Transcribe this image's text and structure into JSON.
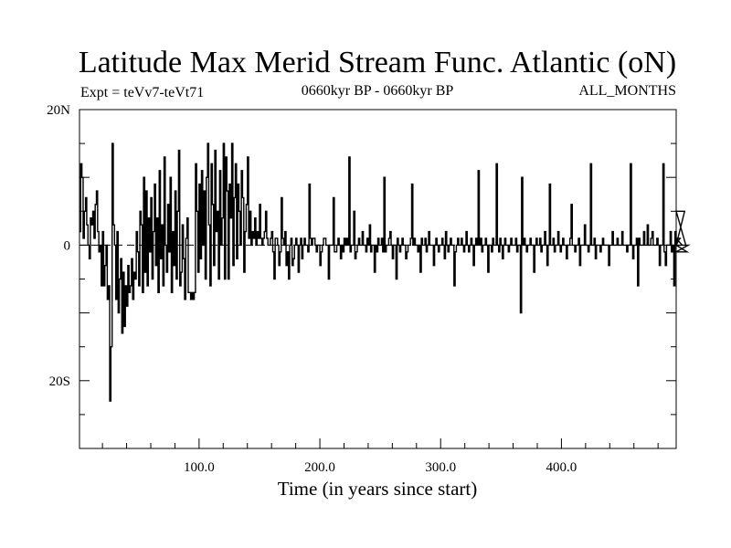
{
  "header": {
    "title": "Latitude Max Merid Stream Func. Atlantic (oN)",
    "experiment": "Expt = teVv7-teVt71",
    "period": "0660kyr BP - 0660kyr BP",
    "months": "ALL_MONTHS"
  },
  "chart_data": {
    "type": "line",
    "title": "Latitude Max Merid Stream Func. Atlantic (oN)",
    "xlabel": "Time (in years since start)",
    "ylabel": "",
    "xlim": [
      1,
      495
    ],
    "ylim": [
      -30,
      20
    ],
    "x_ticks": [
      {
        "value": 100,
        "label": "100.0"
      },
      {
        "value": 200,
        "label": "200.0"
      },
      {
        "value": 300,
        "label": "300.0"
      },
      {
        "value": 400,
        "label": "400.0"
      }
    ],
    "y_ticks": [
      {
        "value": 20,
        "label": "20N"
      },
      {
        "value": 0,
        "label": "0"
      },
      {
        "value": -20,
        "label": "20S"
      }
    ],
    "zero_line": "dashed",
    "grid": false,
    "line_color": "#000000",
    "series": [
      {
        "x_start": 1,
        "x_step": 1,
        "values": [
          2,
          12,
          10,
          1,
          5,
          7,
          3,
          0,
          -2,
          4,
          3,
          5,
          1,
          6,
          8,
          2,
          -1,
          0,
          -6,
          2,
          -6,
          -3,
          0,
          -8,
          -6,
          -23,
          -15,
          15,
          3,
          0,
          -8,
          2,
          -10,
          -5,
          -2,
          -13,
          -4,
          -12,
          -6,
          -9,
          -3,
          -7,
          -6,
          -2,
          -8,
          -4,
          -5,
          2,
          -1,
          -6,
          5,
          3,
          -7,
          10,
          -4,
          8,
          -6,
          4,
          -1,
          7,
          -5,
          2,
          9,
          -3,
          4,
          -7,
          11,
          -2,
          3,
          -6,
          13,
          0,
          -4,
          6,
          -1,
          10,
          -7,
          2,
          -3,
          8,
          -5,
          5,
          14,
          -6,
          -4,
          3,
          -2,
          -8,
          1,
          4,
          -7,
          -7,
          -8,
          -7,
          -8,
          -7,
          12,
          5,
          -4,
          9,
          -2,
          11,
          0,
          8,
          -5,
          10,
          15,
          3,
          -6,
          12,
          6,
          -3,
          14,
          2,
          5,
          -5,
          11,
          0,
          4,
          15,
          -5,
          13,
          8,
          -5,
          9,
          4,
          15,
          -3,
          7,
          12,
          -2,
          9,
          5,
          0,
          11,
          7,
          -4,
          2,
          6,
          13,
          1,
          5,
          0,
          2,
          1,
          4,
          0,
          2,
          1,
          6,
          1,
          0,
          1,
          2,
          5,
          1,
          0,
          0,
          1,
          2,
          -1,
          -5,
          1,
          1,
          0,
          -3,
          -1,
          7,
          1,
          0,
          2,
          -3,
          -1,
          -5,
          0,
          1,
          -3,
          -2,
          0,
          1,
          0,
          -4,
          0,
          1,
          -2,
          0,
          1,
          0,
          0,
          -1,
          9,
          1,
          0,
          1,
          1,
          0,
          -1,
          0,
          0,
          -3,
          -1,
          0,
          1,
          1,
          0,
          0,
          -5,
          0,
          0,
          0,
          7,
          -1,
          -1,
          0,
          1,
          0,
          -2,
          0,
          -1,
          1,
          0,
          1,
          0,
          13,
          -1,
          0,
          0,
          5,
          -2,
          -1,
          0,
          1,
          0,
          0,
          2,
          0,
          0,
          -1,
          1,
          0,
          3,
          -1,
          0,
          0,
          -4,
          0,
          -1,
          1,
          0,
          0,
          1,
          -1,
          10,
          -1,
          0,
          0,
          1,
          2,
          0,
          -2,
          0,
          0,
          -5,
          1,
          0,
          -1,
          0,
          1,
          0,
          0,
          -2,
          -1,
          0,
          0,
          1,
          9,
          0,
          1,
          0,
          0,
          -1,
          0,
          -4,
          1,
          0,
          0,
          1,
          -1,
          0,
          2,
          0,
          0,
          0,
          -3,
          0,
          1,
          0,
          -1,
          0,
          0,
          1,
          0,
          -2,
          2,
          0,
          -1,
          0,
          1,
          0,
          0,
          -6,
          -1,
          0,
          1,
          0,
          0,
          1,
          0,
          -1,
          0,
          2,
          0,
          -1,
          0,
          1,
          0,
          -3,
          0,
          1,
          0,
          11,
          0,
          1,
          -1,
          0,
          0,
          1,
          0,
          -4,
          0,
          0,
          -1,
          1,
          0,
          0,
          12,
          0,
          -1,
          1,
          0,
          -2,
          0,
          1,
          0,
          0,
          -1,
          0,
          1,
          0,
          0,
          0,
          1,
          -1,
          0,
          0,
          -10,
          10,
          0,
          1,
          0,
          -1,
          0,
          0,
          1,
          0,
          0,
          -4,
          0,
          1,
          0,
          0,
          1,
          -1,
          0,
          0,
          2,
          0,
          -3,
          0,
          9,
          0,
          0,
          1,
          -1,
          0,
          0,
          2,
          0,
          -1,
          0,
          1,
          0,
          0,
          -2,
          0,
          0,
          1,
          6,
          0,
          0,
          -1,
          0,
          0,
          1,
          -3,
          0,
          0,
          0,
          3,
          0,
          0,
          -1,
          0,
          12,
          0,
          0,
          1,
          -2,
          0,
          0,
          0,
          -1,
          0,
          1,
          0,
          0,
          0,
          0,
          -3,
          0,
          0,
          2,
          0,
          0,
          0,
          1,
          0,
          0,
          0,
          2,
          0,
          0,
          0,
          -1,
          0,
          0,
          12,
          0,
          -2,
          0,
          0,
          1,
          -6,
          1,
          0,
          0,
          0,
          2,
          0,
          0,
          3,
          0,
          0,
          1,
          2,
          0,
          0,
          0,
          1,
          0,
          -3,
          0,
          0,
          12,
          -1,
          -3,
          0,
          0,
          0,
          2,
          -1,
          0,
          -6,
          2,
          0,
          0,
          0,
          1,
          1,
          0,
          0,
          5,
          0,
          -1,
          0
        ]
      }
    ]
  }
}
